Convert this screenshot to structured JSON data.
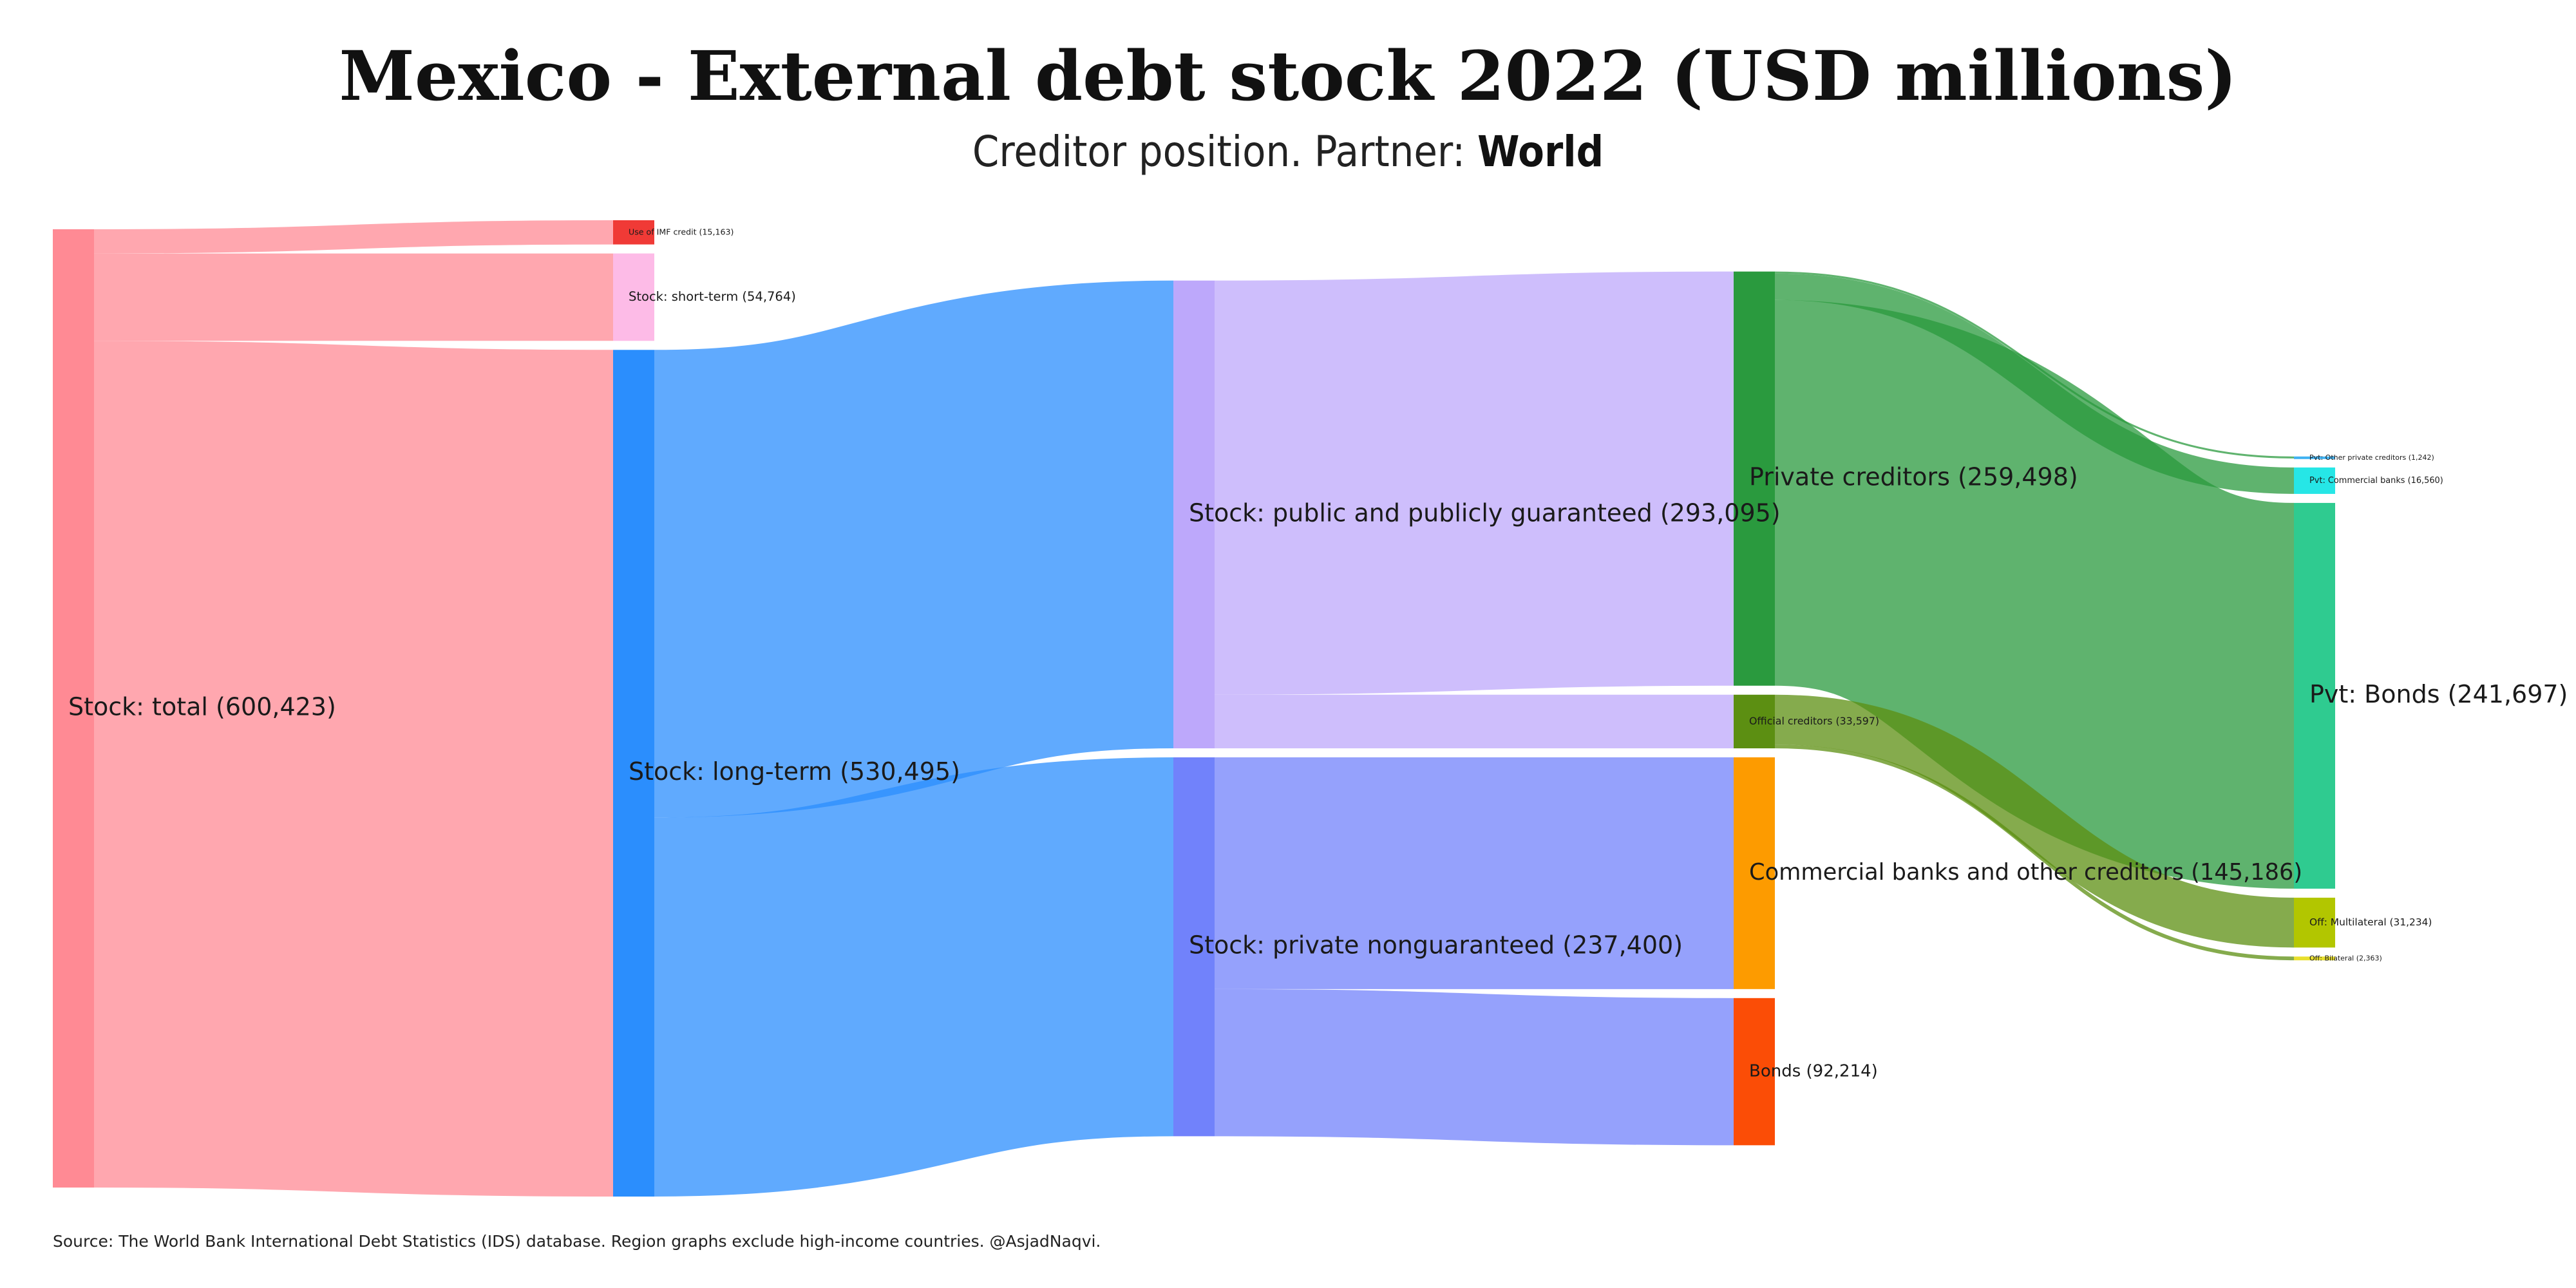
{
  "title": "Mexico - External debt stock 2022 (USD millions)",
  "subtitle_prefix": "Creditor position. Partner: ",
  "subtitle_partner": "World",
  "source": "Source: The World Bank International Debt Statistics (IDS) database. Region graphs exclude high-income countries. @AsjadNaqvi.",
  "chart_data": {
    "type": "sankey",
    "units": "USD millions",
    "nodes": [
      {
        "id": "total",
        "label": "Stock: total (600,423)",
        "value": 600423,
        "color": "#ff8a94",
        "level": 0
      },
      {
        "id": "imf",
        "label": "Use of IMF credit (15,163)",
        "value": 15163,
        "color": "#f03a36",
        "level": 1
      },
      {
        "id": "short",
        "label": "Stock: short-term (54,764)",
        "value": 54764,
        "color": "#fdbbe7",
        "level": 1
      },
      {
        "id": "long",
        "label": "Stock: long-term (530,495)",
        "value": 530495,
        "color": "#2b8efd",
        "level": 1
      },
      {
        "id": "ppg",
        "label": "Stock: public and publicly guaranteed (293,095)",
        "value": 293095,
        "color": "#bda8fb",
        "level": 2
      },
      {
        "id": "png",
        "label": "Stock: private nonguaranteed (237,400)",
        "value": 237400,
        "color": "#7182fb",
        "level": 2
      },
      {
        "id": "private",
        "label": "Private creditors (259,498)",
        "value": 259498,
        "color": "#2a9a3e",
        "level": 3
      },
      {
        "id": "official",
        "label": "Official creditors (33,597)",
        "value": 33597,
        "color": "#5c8f12",
        "level": 3
      },
      {
        "id": "commercial",
        "label": "Commercial banks and other creditors (145,186)",
        "value": 145186,
        "color": "#fd9b00",
        "level": 3
      },
      {
        "id": "bonds",
        "label": "Bonds (92,214)",
        "value": 92214,
        "color": "#fb4d06",
        "level": 3
      },
      {
        "id": "pvt_other",
        "label": "Pvt: Other private creditors (1,242)",
        "value": 1242,
        "color": "#40b2f2",
        "level": 4
      },
      {
        "id": "pvt_comm",
        "label": "Pvt: Commercial banks (16,560)",
        "value": 16560,
        "color": "#26e6e6",
        "level": 4
      },
      {
        "id": "pvt_bonds",
        "label": "Pvt: Bonds (241,697)",
        "value": 241697,
        "color": "#2fcb90",
        "level": 4
      },
      {
        "id": "off_multi",
        "label": "Off: Multilateral (31,234)",
        "value": 31234,
        "color": "#b2c600",
        "level": 4
      },
      {
        "id": "off_bi",
        "label": "Off: Bilateral (2,363)",
        "value": 2363,
        "color": "#e8df2c",
        "level": 4
      }
    ],
    "links": [
      {
        "source": "total",
        "target": "imf",
        "value": 15163
      },
      {
        "source": "total",
        "target": "short",
        "value": 54764
      },
      {
        "source": "total",
        "target": "long",
        "value": 530495
      },
      {
        "source": "long",
        "target": "ppg",
        "value": 293095
      },
      {
        "source": "long",
        "target": "png",
        "value": 237400
      },
      {
        "source": "ppg",
        "target": "private",
        "value": 259498
      },
      {
        "source": "ppg",
        "target": "official",
        "value": 33597
      },
      {
        "source": "png",
        "target": "commercial",
        "value": 145186
      },
      {
        "source": "png",
        "target": "bonds",
        "value": 92214
      },
      {
        "source": "private",
        "target": "pvt_other",
        "value": 1242
      },
      {
        "source": "private",
        "target": "pvt_comm",
        "value": 16560
      },
      {
        "source": "private",
        "target": "pvt_bonds",
        "value": 241697
      },
      {
        "source": "official",
        "target": "off_multi",
        "value": 31234
      },
      {
        "source": "official",
        "target": "off_bi",
        "value": 2363
      }
    ]
  }
}
